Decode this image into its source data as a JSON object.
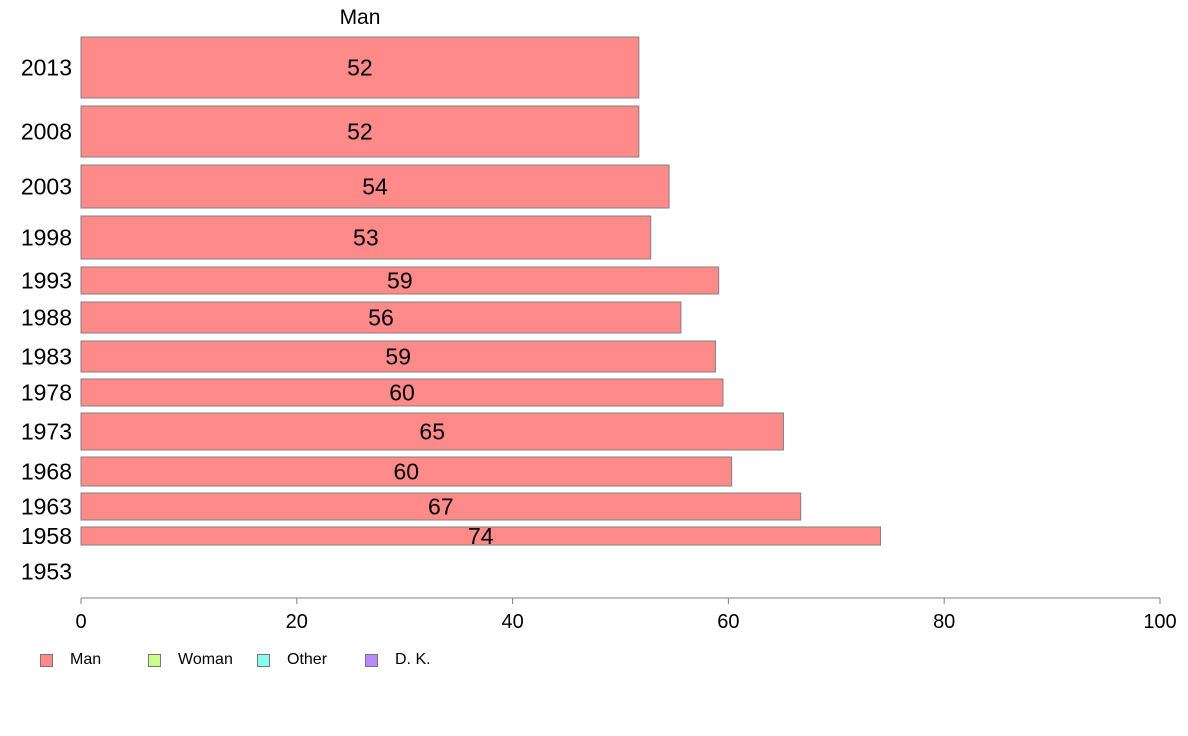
{
  "chart_data": {
    "type": "bar",
    "orientation": "horizontal",
    "title": "Man",
    "categories": [
      "2013",
      "2008",
      "2003",
      "1998",
      "1993",
      "1988",
      "1983",
      "1978",
      "1973",
      "1968",
      "1963",
      "1958",
      "1953"
    ],
    "series": [
      {
        "name": "Man",
        "color": "#ff8a8a",
        "values": [
          51.7,
          51.7,
          54.5,
          52.8,
          59.1,
          55.6,
          58.8,
          59.5,
          65.1,
          60.3,
          66.7,
          74.1,
          null
        ],
        "labels": [
          "52",
          "52",
          "54",
          "53",
          "59",
          "56",
          "59",
          "60",
          "65",
          "60",
          "67",
          "74",
          ""
        ]
      }
    ],
    "xlim": [
      0,
      100
    ],
    "xticks": [
      0,
      20,
      40,
      60,
      80,
      100
    ],
    "xlabel": "",
    "ylabel": "",
    "grid": false,
    "legend_position": "bottom-left"
  },
  "legend": [
    {
      "label": "Man",
      "color": "#ff8a8a"
    },
    {
      "label": "Woman",
      "color": "#ccff88"
    },
    {
      "label": "Other",
      "color": "#88ffee"
    },
    {
      "label": "D. K.",
      "color": "#bb88ff"
    }
  ]
}
